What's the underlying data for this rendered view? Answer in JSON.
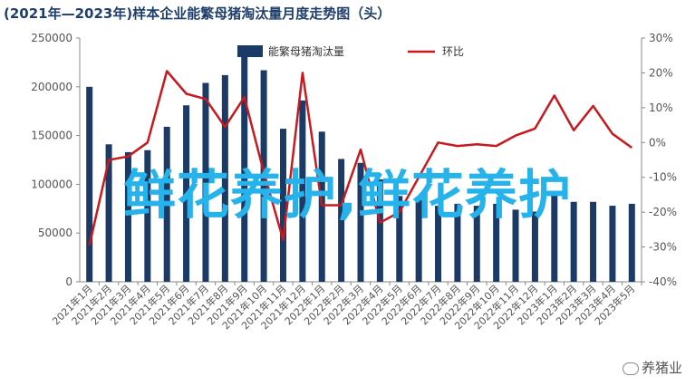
{
  "title": "(2021年—2023年)样本企业能繁母猪淘汰量月度走势图（头）",
  "overlay_text": "鲜花养护,鲜花养护",
  "watermark": "养猪业",
  "colors": {
    "bar": "#1b3a66",
    "line": "#c8191e",
    "overlay": "#26b3ec",
    "axis": "#888888",
    "title": "#1f3e6b"
  },
  "chart_data": {
    "type": "bar+line",
    "categories": [
      "2021年1月",
      "2021年2月",
      "2021年3月",
      "2021年4月",
      "2021年5月",
      "2021年6月",
      "2021年7月",
      "2021年8月",
      "2021年9月",
      "2021年10月",
      "2021年11月",
      "2021年12月",
      "2022年1月",
      "2022年2月",
      "2022年3月",
      "2022年4月",
      "2022年5月",
      "2022年6月",
      "2022年7月",
      "2022年8月",
      "2022年9月",
      "2022年10月",
      "2022年11月",
      "2022年12月",
      "2023年1月",
      "2023年2月",
      "2023年3月",
      "2023年4月",
      "2023年5月"
    ],
    "series": [
      {
        "name": "能繁母猪淘汰量",
        "type": "bar",
        "axis": "left",
        "values": [
          200000,
          141000,
          133000,
          135000,
          159000,
          181000,
          204000,
          212000,
          232000,
          217000,
          157000,
          186000,
          154000,
          126000,
          122000,
          105000,
          88000,
          84000,
          78000,
          80000,
          78000,
          80000,
          74000,
          72000,
          92000,
          82000,
          82000,
          78000,
          80000
        ]
      },
      {
        "name": "环比",
        "type": "line",
        "axis": "right",
        "values": [
          -29.5,
          -5,
          -4,
          0,
          20.5,
          14,
          12.5,
          4.5,
          13,
          -8.5,
          -28,
          20,
          -18,
          -18,
          -2,
          -23,
          -20,
          -10,
          0,
          -1,
          -0.5,
          -1,
          2,
          4,
          13.5,
          3.5,
          10.5,
          2.5,
          -1.5
        ]
      }
    ],
    "y_left": {
      "min": 0,
      "max": 250000,
      "ticks": [
        "0",
        "50000",
        "100000",
        "150000",
        "200000",
        "250000"
      ]
    },
    "y_right": {
      "min": -40,
      "max": 30,
      "ticks": [
        "-40%",
        "-30%",
        "-20%",
        "-10%",
        "0%",
        "10%",
        "20%",
        "30%"
      ]
    },
    "legend": {
      "position": "top-center",
      "labels": [
        "能繁母猪淘汰量",
        "环比"
      ]
    }
  }
}
